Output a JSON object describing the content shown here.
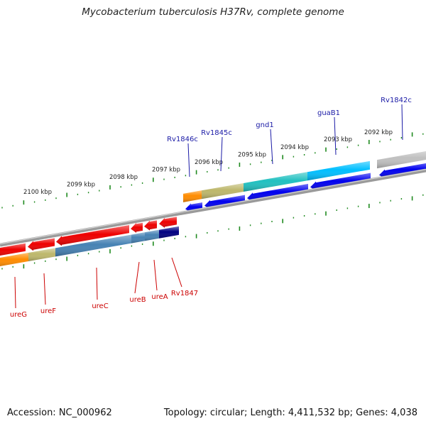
{
  "title": "Mycobacterium tuberculosis H37Rv, complete genome",
  "footer": {
    "accession": "Accession: NC_000962",
    "summary": "Topology: circular; Length: 4,411,532 bp; Genes: 4,038"
  },
  "colors": {
    "backbone": "#8a8a8a",
    "tick": "#1f8a1f",
    "forward_label": "#1a1aa6",
    "reverse_label": "#cc0000"
  },
  "scale_labels": [
    "2092 kbp",
    "2093 kbp",
    "2094 kbp",
    "2095 kbp",
    "2096 kbp",
    "2097 kbp",
    "2098 kbp",
    "2099 kbp",
    "2100 kbp"
  ],
  "forward_genes": [
    {
      "name": "Rv1846c",
      "color": "#ff8c00"
    },
    {
      "name": "Rv1845c",
      "color": "#bdb76b"
    },
    {
      "name": "gnd1",
      "color": "#20c0c0"
    },
    {
      "name": "guaB1",
      "color": "#00bfff"
    },
    {
      "name": "Rv1842c",
      "color": "#c0c0c0"
    }
  ],
  "reverse_genes": [
    {
      "name": "ureG",
      "color": "#ff8c00"
    },
    {
      "name": "ureF",
      "color": "#bdb76b"
    },
    {
      "name": "ureC",
      "color": "#4682b4"
    },
    {
      "name": "ureB",
      "color": "#4682b4"
    },
    {
      "name": "ureA",
      "color": "#4682b4"
    },
    {
      "name": "Rv1847",
      "color": "#000080"
    }
  ]
}
